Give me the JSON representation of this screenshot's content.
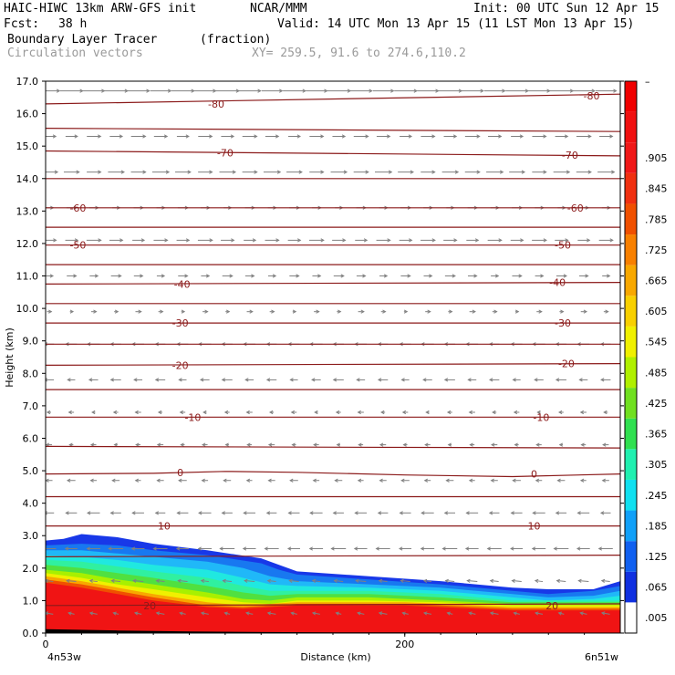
{
  "header": {
    "title_left": "HAIC-HIWC 13km ARW-GFS init",
    "org": "NCAR/MMM",
    "init": "Init: 00 UTC Sun 12 Apr 15",
    "fcst_label": "Fcst:",
    "fcst_value": "38 h",
    "valid": "Valid: 14 UTC Mon 13 Apr 15 (11 LST Mon 13 Apr 15)",
    "field_name": "Boundary Layer Tracer",
    "field_units": "(fraction)",
    "vector_name": "Circulation vectors",
    "xy_range": "XY= 259.5, 91.6 to 274.6,110.2"
  },
  "colors": {
    "contour": "#8b1a1a",
    "vector": "#808080",
    "axis": "#000000"
  },
  "chart_data": {
    "type": "heatmap",
    "title": "Boundary Layer Tracer",
    "units": "(fraction)",
    "xlabel": "Distance (km)",
    "ylabel": "Height (km)",
    "xlim": [
      0,
      320
    ],
    "ylim": [
      0,
      17
    ],
    "x_ticks": [
      {
        "value": 0,
        "label": "0"
      },
      {
        "value": 200,
        "label": "200"
      }
    ],
    "x_end_labels": [
      "4n53w",
      "6n51w"
    ],
    "y_ticks": [
      "0.0",
      "1.0",
      "2.0",
      "3.0",
      "4.0",
      "5.0",
      "6.0",
      "7.0",
      "8.0",
      "9.0",
      "10.0",
      "11.0",
      "12.0",
      "13.0",
      "14.0",
      "15.0",
      "16.0",
      "17.0"
    ],
    "colorbar": {
      "labels": [
        ".005",
        ".065",
        ".125",
        ".185",
        ".245",
        ".305",
        ".365",
        ".425",
        ".485",
        ".545",
        ".605",
        ".665",
        ".725",
        ".785",
        ".845",
        ".905",
        "",
        ""
      ],
      "top_label": "–",
      "colors": [
        "#ffffff",
        "#1030e0",
        "#1060f0",
        "#10a0f8",
        "#10e0f0",
        "#20f0b0",
        "#30e050",
        "#70e020",
        "#b0f000",
        "#f0f000",
        "#f8d000",
        "#f8a800",
        "#f88000",
        "#f05000",
        "#f03010",
        "#f01818",
        "#f01010",
        "#f00000"
      ]
    },
    "tracer_layers": [
      {
        "level": 0.005,
        "color": "#1838e8",
        "top": [
          [
            0,
            2.85
          ],
          [
            10,
            2.9
          ],
          [
            20,
            3.05
          ],
          [
            40,
            2.95
          ],
          [
            60,
            2.75
          ],
          [
            90,
            2.55
          ],
          [
            120,
            2.3
          ],
          [
            130,
            2.1
          ],
          [
            140,
            1.9
          ],
          [
            180,
            1.75
          ],
          [
            220,
            1.6
          ],
          [
            260,
            1.4
          ],
          [
            280,
            1.35
          ],
          [
            305,
            1.35
          ],
          [
            320,
            1.6
          ]
        ]
      },
      {
        "level": 0.065,
        "color": "#1878f0",
        "top": [
          [
            0,
            2.7
          ],
          [
            20,
            2.75
          ],
          [
            40,
            2.7
          ],
          [
            60,
            2.55
          ],
          [
            90,
            2.4
          ],
          [
            120,
            2.15
          ],
          [
            130,
            1.95
          ],
          [
            140,
            1.8
          ],
          [
            180,
            1.65
          ],
          [
            220,
            1.5
          ],
          [
            260,
            1.3
          ],
          [
            280,
            1.2
          ],
          [
            305,
            1.3
          ],
          [
            320,
            1.45
          ]
        ]
      },
      {
        "level": 0.125,
        "color": "#20b8f8",
        "top": [
          [
            0,
            2.55
          ],
          [
            20,
            2.55
          ],
          [
            40,
            2.45
          ],
          [
            60,
            2.35
          ],
          [
            90,
            2.2
          ],
          [
            110,
            2.0
          ],
          [
            125,
            1.75
          ],
          [
            140,
            1.6
          ],
          [
            180,
            1.5
          ],
          [
            220,
            1.4
          ],
          [
            260,
            1.2
          ],
          [
            280,
            1.1
          ],
          [
            305,
            1.15
          ],
          [
            320,
            1.3
          ]
        ]
      },
      {
        "level": 0.185,
        "color": "#20e8e0",
        "top": [
          [
            0,
            2.4
          ],
          [
            20,
            2.35
          ],
          [
            40,
            2.25
          ],
          [
            60,
            2.1
          ],
          [
            90,
            1.95
          ],
          [
            110,
            1.7
          ],
          [
            125,
            1.5
          ],
          [
            140,
            1.45
          ],
          [
            180,
            1.4
          ],
          [
            220,
            1.3
          ],
          [
            260,
            1.1
          ],
          [
            280,
            1.0
          ],
          [
            305,
            1.05
          ],
          [
            320,
            1.15
          ]
        ]
      },
      {
        "level": 0.245,
        "color": "#30f0a0",
        "top": [
          [
            0,
            2.25
          ],
          [
            20,
            2.2
          ],
          [
            40,
            2.05
          ],
          [
            60,
            1.9
          ],
          [
            90,
            1.7
          ],
          [
            110,
            1.45
          ],
          [
            125,
            1.3
          ],
          [
            140,
            1.3
          ],
          [
            180,
            1.3
          ],
          [
            220,
            1.2
          ],
          [
            260,
            1.0
          ],
          [
            320,
            1.0
          ]
        ]
      },
      {
        "level": 0.305,
        "color": "#50e040",
        "top": [
          [
            0,
            2.1
          ],
          [
            20,
            2.0
          ],
          [
            40,
            1.85
          ],
          [
            60,
            1.7
          ],
          [
            90,
            1.45
          ],
          [
            110,
            1.25
          ],
          [
            125,
            1.15
          ],
          [
            140,
            1.2
          ],
          [
            180,
            1.2
          ],
          [
            220,
            1.1
          ],
          [
            260,
            0.95
          ],
          [
            320,
            0.95
          ]
        ]
      },
      {
        "level": 0.425,
        "color": "#a8f000",
        "top": [
          [
            0,
            1.95
          ],
          [
            20,
            1.85
          ],
          [
            40,
            1.65
          ],
          [
            60,
            1.5
          ],
          [
            90,
            1.25
          ],
          [
            110,
            1.05
          ],
          [
            125,
            1.0
          ],
          [
            140,
            1.1
          ],
          [
            180,
            1.1
          ],
          [
            220,
            1.0
          ],
          [
            260,
            0.9
          ],
          [
            320,
            0.9
          ]
        ]
      },
      {
        "level": 0.545,
        "color": "#f0f000",
        "top": [
          [
            0,
            1.85
          ],
          [
            20,
            1.7
          ],
          [
            40,
            1.5
          ],
          [
            60,
            1.35
          ],
          [
            90,
            1.1
          ],
          [
            110,
            0.95
          ],
          [
            125,
            0.9
          ],
          [
            140,
            1.0
          ],
          [
            180,
            1.0
          ],
          [
            220,
            0.95
          ],
          [
            260,
            0.85
          ],
          [
            320,
            0.85
          ]
        ]
      },
      {
        "level": 0.665,
        "color": "#f8a800",
        "top": [
          [
            0,
            1.75
          ],
          [
            20,
            1.6
          ],
          [
            40,
            1.4
          ],
          [
            60,
            1.2
          ],
          [
            90,
            0.95
          ],
          [
            110,
            0.85
          ],
          [
            140,
            0.95
          ],
          [
            200,
            0.95
          ],
          [
            260,
            0.8
          ],
          [
            320,
            0.8
          ]
        ]
      },
      {
        "level": 0.785,
        "color": "#f05000",
        "top": [
          [
            0,
            1.65
          ],
          [
            20,
            1.5
          ],
          [
            40,
            1.3
          ],
          [
            60,
            1.1
          ],
          [
            90,
            0.85
          ],
          [
            110,
            0.8
          ],
          [
            140,
            0.9
          ],
          [
            200,
            0.9
          ],
          [
            260,
            0.75
          ],
          [
            320,
            0.75
          ]
        ]
      },
      {
        "level": 0.905,
        "color": "#f01414",
        "top": [
          [
            0,
            1.55
          ],
          [
            20,
            1.4
          ],
          [
            40,
            1.2
          ],
          [
            60,
            1.0
          ],
          [
            90,
            0.8
          ],
          [
            110,
            0.75
          ],
          [
            140,
            0.85
          ],
          [
            200,
            0.85
          ],
          [
            260,
            0.7
          ],
          [
            320,
            0.7
          ]
        ]
      }
    ],
    "terrain": [
      [
        0,
        0.12
      ],
      [
        40,
        0.08
      ],
      [
        80,
        0.05
      ],
      [
        120,
        0.03
      ],
      [
        160,
        0.02
      ],
      [
        200,
        0.02
      ],
      [
        240,
        0.01
      ],
      [
        320,
        0.01
      ]
    ],
    "contours": [
      {
        "value": "-80",
        "y0": 16.3,
        "y1": 16.6,
        "labels": [
          [
            95,
            16.3
          ],
          [
            304,
            16.55
          ]
        ]
      },
      {
        "value": "",
        "y0": 15.55,
        "y1": 15.45,
        "labels": []
      },
      {
        "value": "-70",
        "y0": 14.85,
        "y1": 14.7,
        "labels": [
          [
            100,
            14.8
          ],
          [
            292,
            14.72
          ]
        ]
      },
      {
        "value": "",
        "y0": 14.0,
        "y1": 14.0,
        "labels": []
      },
      {
        "value": "-60",
        "y0": 13.1,
        "y1": 13.1,
        "labels": [
          [
            18,
            13.1
          ],
          [
            295,
            13.1
          ]
        ]
      },
      {
        "value": "",
        "y0": 12.5,
        "y1": 12.5,
        "labels": []
      },
      {
        "value": "-50",
        "y0": 11.95,
        "y1": 11.95,
        "labels": [
          [
            18,
            11.95
          ],
          [
            288,
            11.95
          ]
        ]
      },
      {
        "value": "",
        "y0": 11.35,
        "y1": 11.35,
        "labels": []
      },
      {
        "value": "-40",
        "y0": 10.75,
        "y1": 10.8,
        "labels": [
          [
            76,
            10.75
          ],
          [
            285,
            10.8
          ]
        ]
      },
      {
        "value": "",
        "y0": 10.15,
        "y1": 10.15,
        "labels": []
      },
      {
        "value": "-30",
        "y0": 9.55,
        "y1": 9.55,
        "labels": [
          [
            75,
            9.55
          ],
          [
            288,
            9.55
          ]
        ]
      },
      {
        "value": "",
        "y0": 8.9,
        "y1": 8.9,
        "labels": []
      },
      {
        "value": "-20",
        "y0": 8.25,
        "y1": 8.3,
        "labels": [
          [
            75,
            8.25
          ],
          [
            290,
            8.3
          ]
        ]
      },
      {
        "value": "",
        "y0": 7.5,
        "y1": 7.5,
        "labels": []
      },
      {
        "value": "-10",
        "y0": 6.65,
        "y1": 6.65,
        "labels": [
          [
            82,
            6.65
          ],
          [
            276,
            6.65
          ]
        ]
      },
      {
        "value": "",
        "y0": 5.75,
        "y1": 5.7,
        "labels": []
      },
      {
        "value": "0",
        "y0": 4.9,
        "y1": 4.9,
        "bump": true,
        "labels": [
          [
            75,
            4.95
          ],
          [
            272,
            4.9
          ]
        ]
      },
      {
        "value": "",
        "y0": 4.2,
        "y1": 4.2,
        "labels": []
      },
      {
        "value": "10",
        "y0": 3.3,
        "y1": 3.3,
        "labels": [
          [
            66,
            3.3
          ],
          [
            272,
            3.3
          ]
        ]
      },
      {
        "value": "",
        "y0": 2.35,
        "y1": 2.4,
        "labels": []
      },
      {
        "value": "20",
        "y0": 0.85,
        "y1": 0.9,
        "labels": [
          [
            58,
            0.85
          ],
          [
            282,
            0.85
          ]
        ]
      }
    ],
    "wind_profile": [
      {
        "z": 16.7,
        "u": 10,
        "w": 0.0
      },
      {
        "z": 15.3,
        "u": 6,
        "w": 0.0
      },
      {
        "z": 14.2,
        "u": 7,
        "w": 0.0
      },
      {
        "z": 13.1,
        "u": 4,
        "w": 0.0
      },
      {
        "z": 12.1,
        "u": 6,
        "w": 0.0
      },
      {
        "z": 11.0,
        "u": 4,
        "w": 0.0
      },
      {
        "z": 9.9,
        "u": 2,
        "w": 0.0
      },
      {
        "z": 8.9,
        "u": -5,
        "w": 0.0
      },
      {
        "z": 7.8,
        "u": -4,
        "w": 0.0
      },
      {
        "z": 6.8,
        "u": -2,
        "w": 0.0
      },
      {
        "z": 5.8,
        "u": -2,
        "w": 0.0
      },
      {
        "z": 4.7,
        "u": -3,
        "w": 0.0
      },
      {
        "z": 3.7,
        "u": -5,
        "w": 0.0
      },
      {
        "z": 2.6,
        "u": -6,
        "w": 0.0
      },
      {
        "z": 1.6,
        "u": -4,
        "w": 1.0
      },
      {
        "z": 0.6,
        "u": -3,
        "w": 1.5
      }
    ]
  }
}
